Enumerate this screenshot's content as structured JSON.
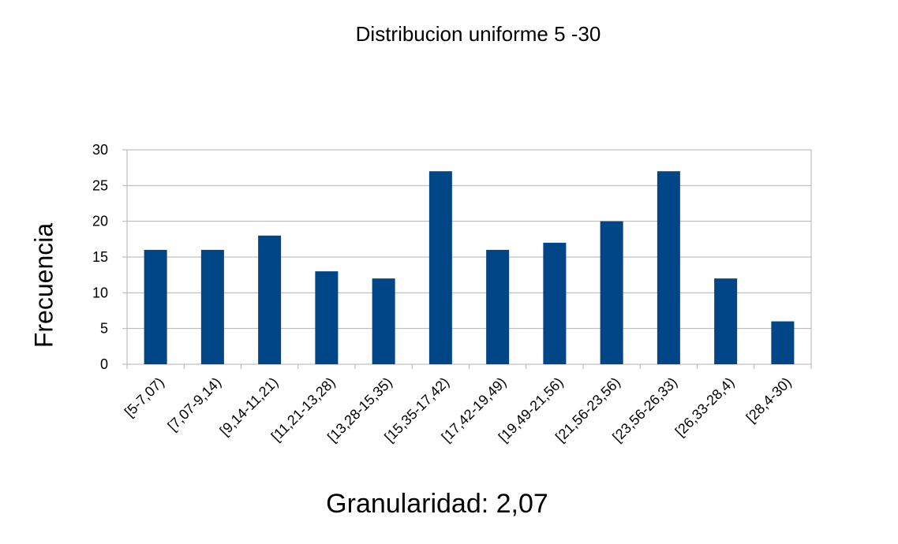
{
  "chart_data": {
    "type": "bar",
    "title": "Distribucion uniforme 5 -30",
    "xlabel": "Granularidad: 2,07",
    "ylabel": "Frecuencia",
    "categories": [
      "[5-7,07)",
      "[7,07-9,14)",
      "[9,14-11,21)",
      "[11,21-13,28)",
      "[13,28-15,35)",
      "[15,35-17,42)",
      "[17,42-19,49)",
      "[19,49-21,56)",
      "[21,56-23,56)",
      "[23,56-26,33)",
      "[26,33-28,4)",
      "[28,4-30)"
    ],
    "values": [
      16,
      16,
      18,
      13,
      12,
      27,
      16,
      17,
      20,
      27,
      12,
      6
    ],
    "ylim": [
      0,
      30
    ],
    "yticks": [
      0,
      5,
      10,
      15,
      20,
      25,
      30
    ],
    "grid": true,
    "bar_color": "#004586",
    "gridline_color": "#b3b3b3"
  }
}
